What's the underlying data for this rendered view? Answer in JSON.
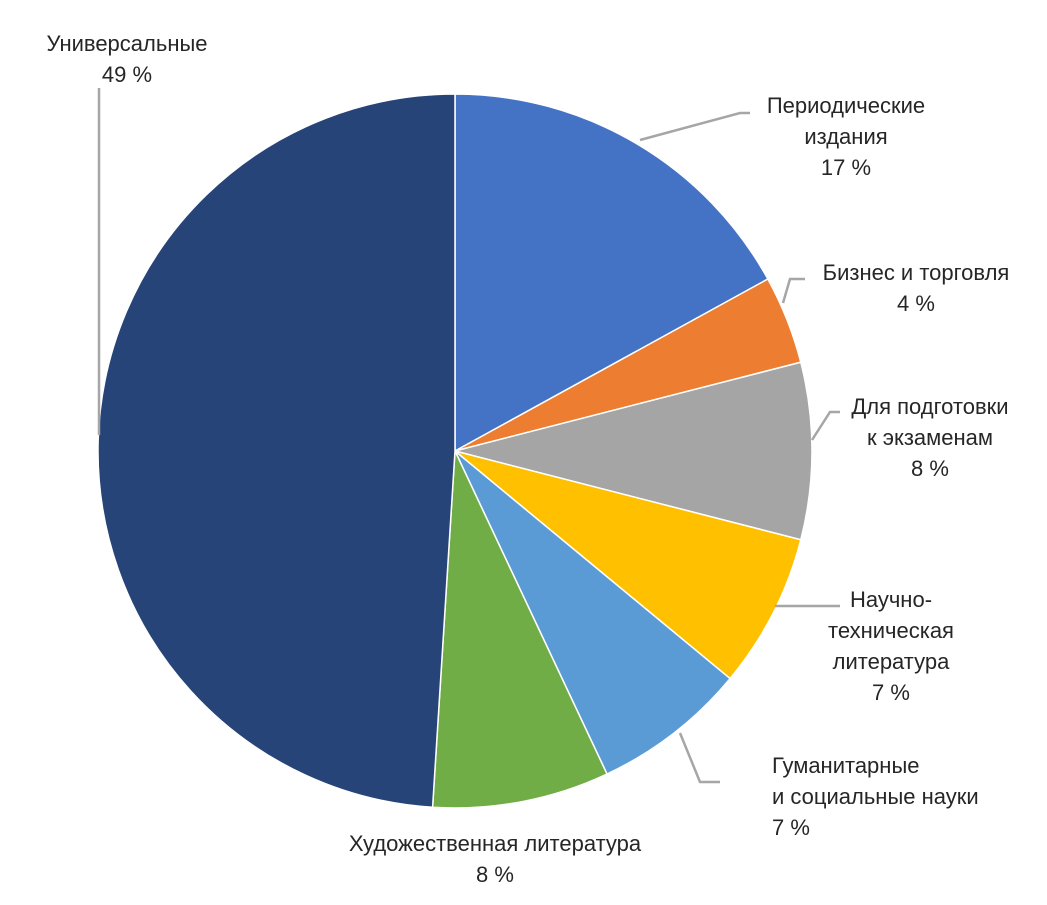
{
  "chart_data": {
    "type": "pie",
    "title": "",
    "slices": [
      {
        "label_lines": [
          "Периодические",
          "издания"
        ],
        "value": 17,
        "value_label": "17 %",
        "color": "#4472C4"
      },
      {
        "label_lines": [
          "Бизнес и торговля"
        ],
        "value": 4,
        "value_label": "4 %",
        "color": "#ED7D31"
      },
      {
        "label_lines": [
          "Для подготовки",
          "к экзаменам"
        ],
        "value": 8,
        "value_label": "8 %",
        "color": "#A5A5A5"
      },
      {
        "label_lines": [
          "Научно-",
          "техническая",
          "литература"
        ],
        "value": 7,
        "value_label": "7 %",
        "color": "#FFC000"
      },
      {
        "label_lines": [
          "Гуманитарные",
          "и социальные науки"
        ],
        "value": 7,
        "value_label": "7 %",
        "color": "#5B9BD5"
      },
      {
        "label_lines": [
          "Художественная литература"
        ],
        "value": 8,
        "value_label": "8 %",
        "color": "#70AD47"
      },
      {
        "label_lines": [
          "Универсальные"
        ],
        "value": 49,
        "value_label": "49 %",
        "color": "#264478"
      }
    ]
  }
}
